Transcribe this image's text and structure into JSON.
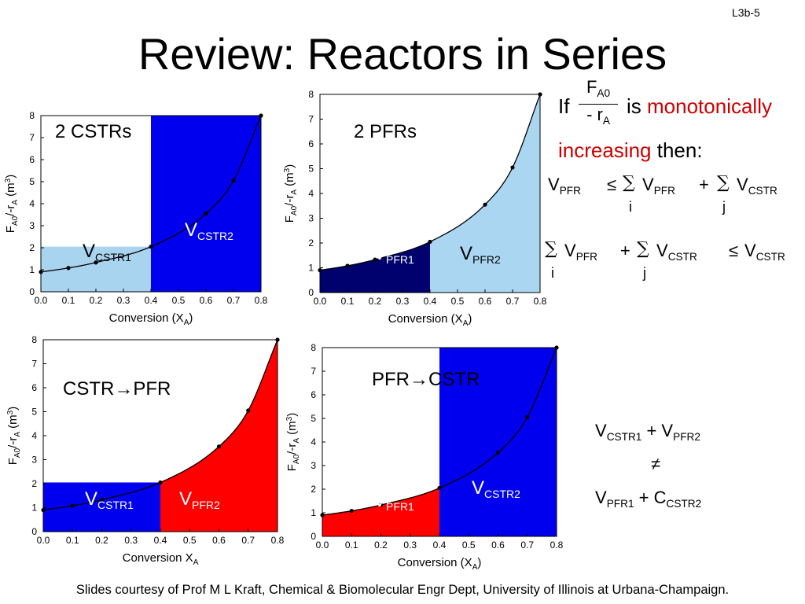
{
  "slide_number": "L3b-5",
  "title": "Review: Reactors in Series",
  "footer": "Slides courtesy of Prof M L Kraft, Chemical & Biomolecular Engr Dept, University of Illinois at Urbana-Champaign.",
  "condition": {
    "if": "If",
    "fraction_num_main": "F",
    "fraction_num_sub": "A0",
    "fraction_den_main": "- r",
    "fraction_den_sub": "A",
    "is": "is",
    "monotonic_a": "monotonically",
    "monotonic_b": "increasing",
    "then": "then:"
  },
  "inequality1": {
    "lhs": "V",
    "lhs_sub": "PFR",
    "op": "≤",
    "sum1": "∑",
    "term1": "V",
    "term1_sub": "PFR",
    "idx1": "i",
    "plus": "+",
    "sum2": "∑",
    "term2": "V",
    "term2_sub": "CSTR",
    "idx2": "j"
  },
  "inequality2": {
    "sum1": "∑",
    "term1": "V",
    "term1_sub": "PFR",
    "idx1": "i",
    "plus": "+",
    "sum2": "∑",
    "term2": "V",
    "term2_sub": "CSTR",
    "idx2": "j",
    "op": "≤",
    "rhs": "V",
    "rhs_sub": "CSTR"
  },
  "comparison": {
    "line1_a": "V",
    "line1_a_sub": "CSTR1",
    "line1_plus": " + V",
    "line1_b_sub": "PFR2",
    "neq": "≠",
    "line3_a": "V",
    "line3_a_sub": "PFR1",
    "line3_plus": " + C",
    "line3_b_sub": "CSTR2"
  },
  "chart_data": [
    {
      "type": "area",
      "panel_title": "2 CSTRs",
      "xlabel": "Conversion (X",
      "xlabel_sub": "A",
      "xlabel_end": ")",
      "ylabel": "F",
      "ylabel_sub1": "A0",
      "ylabel_mid": "/-r",
      "ylabel_sub2": "A",
      "ylabel_end": " (m",
      "ylabel_sup": "3",
      "ylabel_close": ")",
      "xlim": [
        0,
        0.8
      ],
      "ylim": [
        0,
        8
      ],
      "xticks": [
        "0.0",
        "0.1",
        "0.2",
        "0.3",
        "0.4",
        "0.5",
        "0.6",
        "0.7",
        "0.8"
      ],
      "yticks": [
        "0",
        "1",
        "2",
        "3",
        "4",
        "5",
        "6",
        "7",
        "8"
      ],
      "points": [
        [
          0,
          0.9
        ],
        [
          0.1,
          1.08
        ],
        [
          0.2,
          1.33
        ],
        [
          0.4,
          2.05
        ],
        [
          0.6,
          3.55
        ],
        [
          0.7,
          5.05
        ],
        [
          0.8,
          8.0
        ]
      ],
      "regions": [
        {
          "kind": "rect",
          "x0": 0,
          "x1": 0.4,
          "height": 2.05,
          "color": "#a9d4f0",
          "label": "V",
          "sub": "CSTR1",
          "label_color": "#000000"
        },
        {
          "kind": "rect",
          "x0": 0.4,
          "x1": 0.8,
          "height": 8.0,
          "color": "#0000ee",
          "label": "V",
          "sub": "CSTR2",
          "label_color": "#ffffff"
        }
      ]
    },
    {
      "type": "area",
      "panel_title": "2 PFRs",
      "xlabel": "Conversion (X",
      "xlabel_sub": "A",
      "xlabel_end": ")",
      "ylabel": "F",
      "ylabel_sub1": "A0",
      "ylabel_mid": "/-r",
      "ylabel_sub2": "A",
      "ylabel_end": " (m",
      "ylabel_sup": "3",
      "ylabel_close": ")",
      "xlim": [
        0,
        0.8
      ],
      "ylim": [
        0,
        8
      ],
      "xticks": [
        "0.0",
        "0.1",
        "0.2",
        "0.3",
        "0.4",
        "0.5",
        "0.6",
        "0.7",
        "0.8"
      ],
      "yticks": [
        "0",
        "1",
        "2",
        "3",
        "4",
        "5",
        "6",
        "7",
        "8"
      ],
      "points": [
        [
          0,
          0.9
        ],
        [
          0.1,
          1.08
        ],
        [
          0.2,
          1.33
        ],
        [
          0.4,
          2.05
        ],
        [
          0.6,
          3.55
        ],
        [
          0.7,
          5.05
        ],
        [
          0.8,
          8.0
        ]
      ],
      "regions": [
        {
          "kind": "under",
          "x0": 0,
          "x1": 0.4,
          "color": "#00006e",
          "label": "V",
          "sub": "PFR1",
          "label_color": "#ffffff"
        },
        {
          "kind": "under",
          "x0": 0.4,
          "x1": 0.8,
          "color": "#aad6f2",
          "label": "V",
          "sub": "PFR2",
          "label_color": "#000000"
        }
      ]
    },
    {
      "type": "area",
      "panel_title": "CSTR→PFR",
      "xlabel": "Conversion X",
      "xlabel_sub": "A",
      "xlabel_end": "",
      "ylabel": "F",
      "ylabel_sub1": "A0",
      "ylabel_mid": "/-r",
      "ylabel_sub2": "A",
      "ylabel_end": " (m",
      "ylabel_sup": "3",
      "ylabel_close": ")",
      "xlim": [
        0,
        0.8
      ],
      "ylim": [
        0,
        8
      ],
      "xticks": [
        "0.0",
        "0.1",
        "0.2",
        "0.3",
        "0.4",
        "0.5",
        "0.6",
        "0.7",
        "0.8"
      ],
      "yticks": [
        "0",
        "1",
        "2",
        "3",
        "4",
        "5",
        "6",
        "7",
        "8"
      ],
      "points": [
        [
          0,
          0.9
        ],
        [
          0.1,
          1.08
        ],
        [
          0.2,
          1.33
        ],
        [
          0.4,
          2.05
        ],
        [
          0.6,
          3.55
        ],
        [
          0.7,
          5.05
        ],
        [
          0.8,
          8.0
        ]
      ],
      "regions": [
        {
          "kind": "rect",
          "x0": 0,
          "x1": 0.4,
          "height": 2.05,
          "color": "#0000ee",
          "label": "V",
          "sub": "CSTR1",
          "label_color": "#ffffff"
        },
        {
          "kind": "under",
          "x0": 0.4,
          "x1": 0.8,
          "color": "#ff0000",
          "label": "V",
          "sub": "PFR2",
          "label_color": "#ffffff"
        }
      ]
    },
    {
      "type": "area",
      "panel_title": "PFR→CSTR",
      "xlabel": "Conversion (X",
      "xlabel_sub": "A",
      "xlabel_end": ")",
      "ylabel": "F",
      "ylabel_sub1": "A0",
      "ylabel_mid": "/-r",
      "ylabel_sub2": "A",
      "ylabel_end": " (m",
      "ylabel_sup": "3",
      "ylabel_close": ")",
      "xlim": [
        0,
        0.8
      ],
      "ylim": [
        0,
        8
      ],
      "xticks": [
        "0.0",
        "0.1",
        "0.2",
        "0.3",
        "0.4",
        "0.5",
        "0.6",
        "0.7",
        "0.8"
      ],
      "yticks": [
        "0",
        "1",
        "2",
        "3",
        "4",
        "5",
        "6",
        "7",
        "8"
      ],
      "points": [
        [
          0,
          0.9
        ],
        [
          0.1,
          1.08
        ],
        [
          0.2,
          1.33
        ],
        [
          0.4,
          2.05
        ],
        [
          0.6,
          3.55
        ],
        [
          0.7,
          5.05
        ],
        [
          0.8,
          8.0
        ]
      ],
      "regions": [
        {
          "kind": "under",
          "x0": 0,
          "x1": 0.4,
          "color": "#ff0000",
          "label": "V",
          "sub": "PFR1",
          "label_color": "#ffffff"
        },
        {
          "kind": "rect",
          "x0": 0.4,
          "x1": 0.8,
          "height": 8.0,
          "color": "#0000ee",
          "label": "V",
          "sub": "CSTR2",
          "label_color": "#ffffff"
        }
      ]
    }
  ]
}
